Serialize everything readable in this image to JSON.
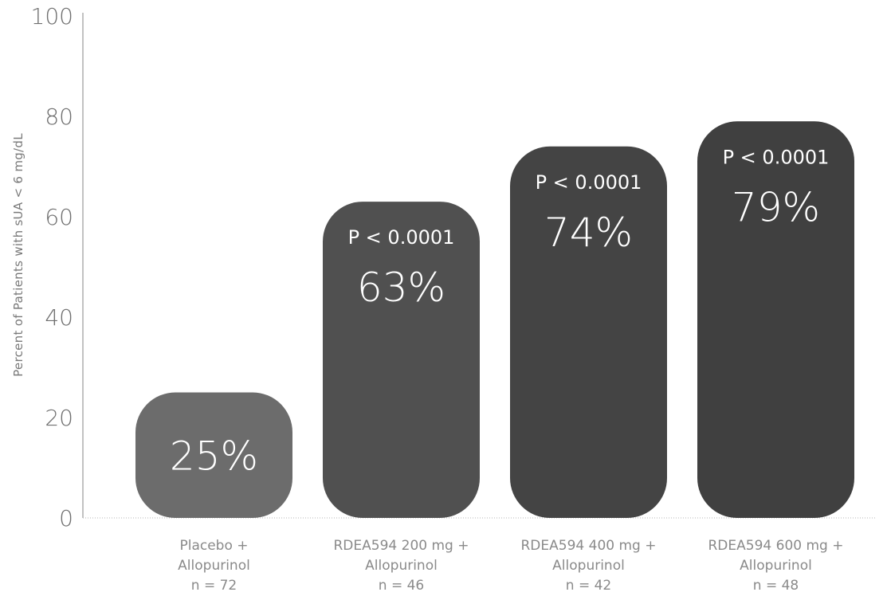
{
  "chart_data": {
    "type": "bar",
    "ylabel": "Percent of Patients with sUA < 6 mg/dL",
    "xlabel": "",
    "ylim": [
      0,
      100
    ],
    "yticks": [
      0,
      20,
      40,
      60,
      80,
      100
    ],
    "grid": false,
    "categories": [
      [
        "Placebo +",
        "Allopurinol",
        "n = 72"
      ],
      [
        "RDEA594 200 mg +",
        "Allopurinol",
        "n = 46"
      ],
      [
        "RDEA594 400 mg +",
        "Allopurinol",
        "n = 42"
      ],
      [
        "RDEA594 600 mg +",
        "Allopurinol",
        "n = 48"
      ]
    ],
    "values": [
      25,
      63,
      74,
      79
    ],
    "data_labels": [
      "25%",
      "63%",
      "74%",
      "79%"
    ],
    "p_values": [
      "",
      "P < 0.0001",
      "P < 0.0001",
      "P < 0.0001"
    ],
    "colors": [
      "#6c6c6c",
      "#505050",
      "#444444",
      "#404040"
    ]
  }
}
